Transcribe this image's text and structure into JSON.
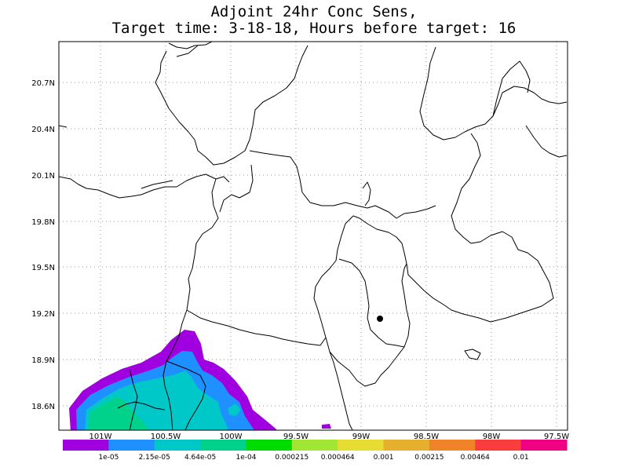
{
  "title": {
    "line1": "Adjoint 24hr Conc Sens,",
    "line2": "Target time: 3-18-18, Hours before target: 16"
  },
  "axes": {
    "lat_ticks": [
      "20.7N",
      "20.4N",
      "20.1N",
      "19.8N",
      "19.5N",
      "19.2N",
      "18.9N",
      "18.6N"
    ],
    "lon_ticks": [
      "101W",
      "100.5W",
      "100W",
      "99.5W",
      "99W",
      "98.5W",
      "98W",
      "97.5W"
    ],
    "grid": "dotted"
  },
  "colorbar": {
    "labels": [
      "1e-05",
      "2.15e-05",
      "4.64e-05",
      "1e-04",
      "0.000215",
      "0.000464",
      "0.001",
      "0.00215",
      "0.00464",
      "0.01"
    ],
    "colors": [
      "#a000e0",
      "#1e90ff",
      "#00c8c8",
      "#00d28c",
      "#00dc00",
      "#a0e632",
      "#e6dc32",
      "#e6af2d",
      "#f08228",
      "#fa3c3c",
      "#f00082"
    ]
  },
  "target_marker": {
    "lon": -98.97,
    "lat": 19.16
  },
  "chart_data": {
    "type": "heatmap",
    "title": "Adjoint 24hr Conc Sens,\nTarget time: 3-18-18, Hours before target: 16",
    "xlabel": "",
    "ylabel": "",
    "xlim": [
      -101.3,
      -97.5
    ],
    "ylim": [
      18.45,
      20.95
    ],
    "levels": [
      1e-05,
      2.15e-05,
      4.64e-05,
      0.0001,
      0.000215,
      0.000464,
      0.001,
      0.00215,
      0.00464,
      0.01
    ]
  }
}
